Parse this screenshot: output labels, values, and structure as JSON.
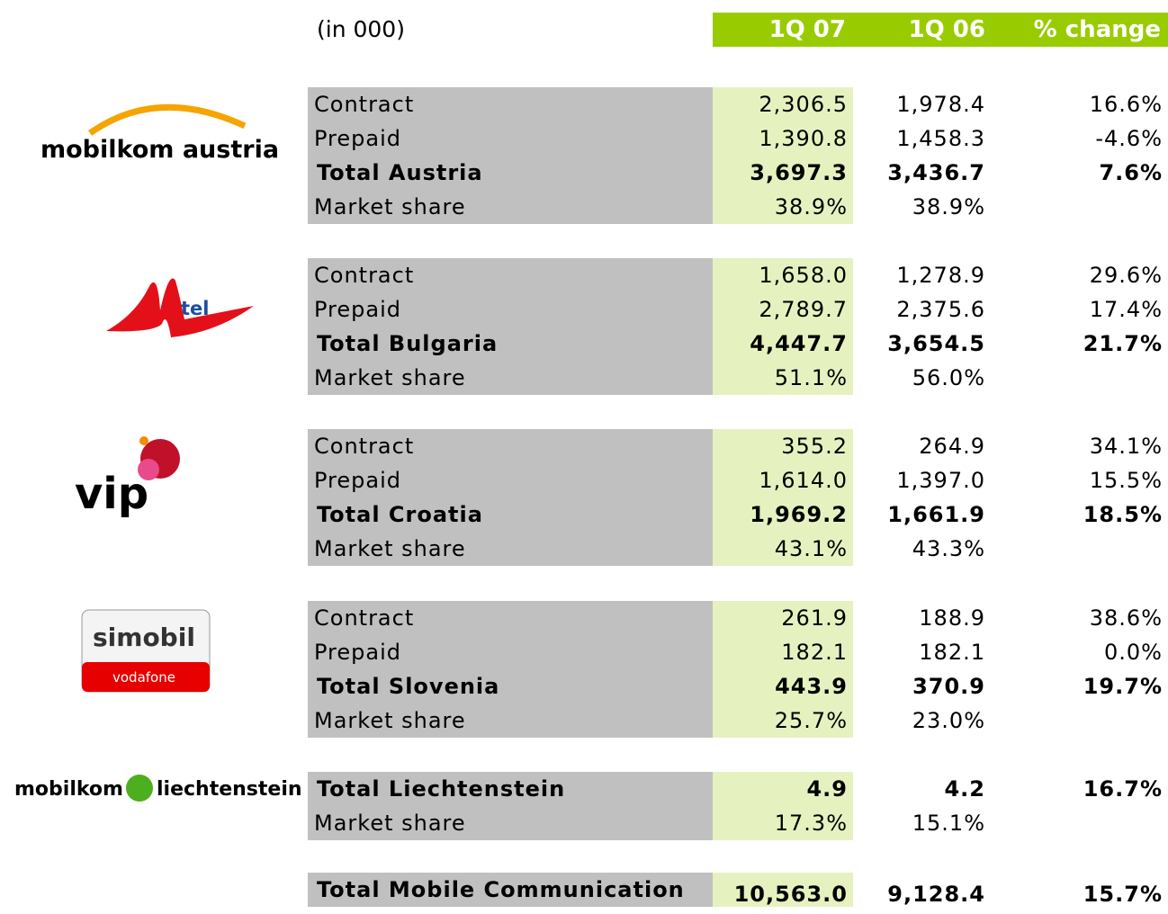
{
  "header": {
    "unit": "(in 000)",
    "columns": [
      "1Q 07",
      "1Q 06",
      "% change"
    ]
  },
  "sections": [
    {
      "logo": {
        "name": "mobilkom austria"
      },
      "rows": [
        {
          "cells": [
            "Contract",
            "2,306.5",
            "1,978.4",
            "16.6%"
          ]
        },
        {
          "cells": [
            "Prepaid",
            "1,390.8",
            "1,458.3",
            "-4.6%"
          ]
        },
        {
          "cells": [
            "Total Austria",
            "3,697.3",
            "3,436.7",
            "7.6%"
          ],
          "bold": true
        },
        {
          "cells": [
            "Market share",
            "38.9%",
            "38.9%"
          ]
        }
      ]
    },
    {
      "logo": {
        "name": "tel"
      },
      "rows": [
        {
          "cells": [
            "Contract",
            "1,658.0",
            "1,278.9",
            "29.6%"
          ]
        },
        {
          "cells": [
            "Prepaid",
            "2,789.7",
            "2,375.6",
            "17.4%"
          ]
        },
        {
          "cells": [
            "Total Bulgaria",
            "4,447.7",
            "3,654.5",
            "21.7%"
          ],
          "bold": true
        },
        {
          "cells": [
            "Market share",
            "51.1%",
            "56.0%"
          ]
        }
      ]
    },
    {
      "logo": {
        "name": "vip"
      },
      "rows": [
        {
          "cells": [
            "Contract",
            "355.2",
            "264.9",
            "34.1%"
          ]
        },
        {
          "cells": [
            "Prepaid",
            "1,614.0",
            "1,397.0",
            "15.5%"
          ]
        },
        {
          "cells": [
            "Total Croatia",
            "1,969.2",
            "1,661.9",
            "18.5%"
          ],
          "bold": true
        },
        {
          "cells": [
            "Market share",
            "43.1%",
            "43.3%"
          ]
        }
      ]
    },
    {
      "logo": {
        "name": "simobil",
        "sub": "vodafone"
      },
      "rows": [
        {
          "cells": [
            "Contract",
            "261.9",
            "188.9",
            "38.6%"
          ]
        },
        {
          "cells": [
            "Prepaid",
            "182.1",
            "182.1",
            "0.0%"
          ]
        },
        {
          "cells": [
            "Total Slovenia",
            "443.9",
            "370.9",
            "19.7%"
          ],
          "bold": true
        },
        {
          "cells": [
            "Market share",
            "25.7%",
            "23.0%"
          ]
        }
      ]
    },
    {
      "logo": {
        "name": "mobilkom",
        "sub": "liechtenstein"
      },
      "rows": [
        {
          "cells": [
            "Total Liechtenstein",
            "4.9",
            "4.2",
            "16.7%"
          ],
          "bold": true
        },
        {
          "cells": [
            "Market share",
            "17.3%",
            "15.1%"
          ]
        }
      ]
    },
    {
      "rows": [
        {
          "cells": [
            "Total Mobile Communication",
            "10,563.0",
            "9,128.4",
            "15.7%"
          ],
          "bold": true
        }
      ]
    }
  ]
}
